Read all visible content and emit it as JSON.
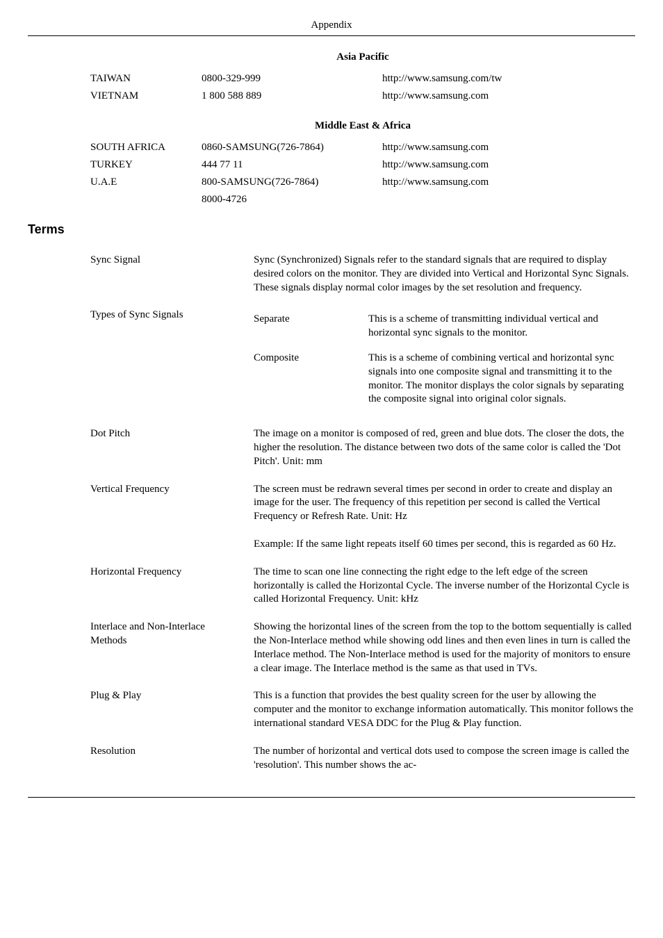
{
  "header": "Appendix",
  "regions": [
    {
      "title": "Asia Pacific",
      "rows": [
        {
          "country": "TAIWAN",
          "phone": "0800-329-999",
          "url": "http://www.samsung.com/tw"
        },
        {
          "country": "VIETNAM",
          "phone": "1 800 588 889",
          "url": "http://www.samsung.com"
        }
      ]
    },
    {
      "title": "Middle East & Africa",
      "rows": [
        {
          "country": "SOUTH AFRICA",
          "phone": "0860-SAMSUNG(726-7864)",
          "url": "http://www.samsung.com"
        },
        {
          "country": "TURKEY",
          "phone": "444 77 11",
          "url": "http://www.samsung.com"
        },
        {
          "country": "U.A.E",
          "phone": "800-SAMSUNG(726-7864)",
          "url": "http://www.samsung.com"
        },
        {
          "country": "",
          "phone": "8000-4726",
          "url": ""
        }
      ]
    }
  ],
  "termsTitle": "Terms",
  "terms": [
    {
      "label": "Sync Signal",
      "desc": "Sync (Synchronized) Signals refer to the standard signals that are required to display desired colors on the monitor. They are divided into Vertical and Horizontal Sync Signals. These signals display normal color images by the set resolution and frequency."
    },
    {
      "label": "Types of Sync Signals",
      "sigtypes": [
        {
          "name": "Separate",
          "text": "This is a scheme of transmitting individual vertical and horizontal sync signals to the monitor."
        },
        {
          "name": "Composite",
          "text": "This is a scheme of combining vertical and horizontal sync signals into one composite signal and transmitting it to the monitor. The monitor displays the color signals by separating the composite signal into original color signals."
        }
      ]
    },
    {
      "label": "Dot Pitch",
      "desc": "The image on a monitor is composed of red, green and blue dots. The closer the dots, the higher the resolution. The distance between two dots of the same color is called the 'Dot Pitch'. Unit: mm"
    },
    {
      "label": "Vertical Frequency",
      "paras": [
        "The screen must be redrawn several times per second in order to create and display an image for the user. The frequency of this repetition per second is called the Vertical Frequency or Refresh Rate. Unit: Hz",
        "Example: If the same light repeats itself 60 times per second, this is regarded as 60 Hz."
      ]
    },
    {
      "label": "Horizontal Frequency",
      "desc": "The time to scan one line connecting the right edge to the left edge of the screen horizontally is called the Horizontal Cycle. The inverse number of the Horizontal Cycle is called Horizontal Frequency. Unit: kHz"
    },
    {
      "label": "Interlace and Non-Interlace Methods",
      "desc": "Showing the horizontal lines of the screen from the top to the bottom sequentially is called the Non-Interlace method while showing odd lines and then even lines in turn is called the Interlace method. The Non-Interlace method is used for the majority of monitors to ensure a clear image. The Interlace method is the same as that used in TVs."
    },
    {
      "label": "Plug & Play",
      "desc": "This is a function that provides the best quality screen for the user by allowing the computer and the monitor to exchange information automatically. This monitor follows the international standard VESA DDC for the Plug & Play function."
    },
    {
      "label": "Resolution",
      "desc": "The number of horizontal and vertical dots used to compose the screen image is called the 'resolution'. This number shows the ac-"
    }
  ]
}
